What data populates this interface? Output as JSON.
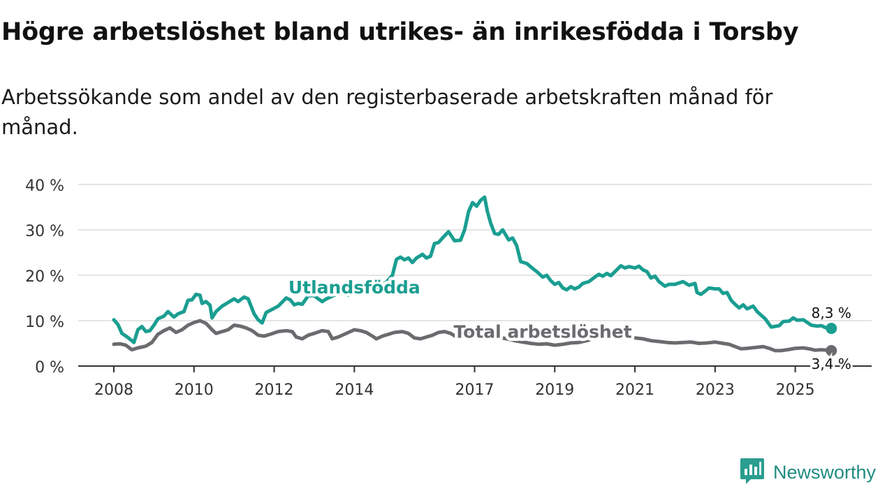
{
  "header": {
    "title": "Högre arbetslöshet bland utrikes- än inrikesfödda i Torsby",
    "subtitle": "Arbetssökande som andel av den registerbaserade arbetskraften månad för månad."
  },
  "brand": {
    "name": "Newsworthy",
    "icon": "bar-chart-logo-icon",
    "color": "#2a9d8f"
  },
  "chart_data": {
    "type": "line",
    "title": "Högre arbetslöshet bland utrikes- än inrikesfödda i Torsby",
    "xlabel": "",
    "ylabel": "",
    "ylim": [
      0,
      40
    ],
    "xlim": [
      2008,
      2026
    ],
    "grid": true,
    "yticks": [
      0,
      10,
      20,
      30,
      40
    ],
    "ytick_labels": [
      "0 %",
      "10 %",
      "20 %",
      "30 %",
      "40 %"
    ],
    "xticks": [
      2008,
      2010,
      2012,
      2014,
      2017,
      2019,
      2021,
      2023,
      2025
    ],
    "xtick_labels": [
      "2008",
      "2010",
      "2012",
      "2014",
      "2017",
      "2019",
      "2021",
      "2023",
      "2025"
    ],
    "series": [
      {
        "name": "Utlandsfödda",
        "color": "#1a9e91",
        "end_label": "8,3 %",
        "points": [
          [
            2008.0,
            10.2
          ],
          [
            2008.1,
            9.2
          ],
          [
            2008.2,
            7.2
          ],
          [
            2008.35,
            6.3
          ],
          [
            2008.5,
            5.2
          ],
          [
            2008.6,
            8.0
          ],
          [
            2008.7,
            8.7
          ],
          [
            2008.8,
            7.6
          ],
          [
            2008.9,
            7.8
          ],
          [
            2009.0,
            9.0
          ],
          [
            2009.1,
            10.4
          ],
          [
            2009.25,
            11.0
          ],
          [
            2009.35,
            12.0
          ],
          [
            2009.5,
            10.8
          ],
          [
            2009.6,
            11.5
          ],
          [
            2009.75,
            12.0
          ],
          [
            2009.85,
            14.5
          ],
          [
            2009.95,
            14.6
          ],
          [
            2010.05,
            15.8
          ],
          [
            2010.15,
            15.6
          ],
          [
            2010.2,
            13.8
          ],
          [
            2010.3,
            14.2
          ],
          [
            2010.4,
            13.4
          ],
          [
            2010.45,
            10.6
          ],
          [
            2010.55,
            12.0
          ],
          [
            2010.7,
            13.2
          ],
          [
            2010.85,
            14.0
          ],
          [
            2011.0,
            14.8
          ],
          [
            2011.1,
            14.2
          ],
          [
            2011.25,
            15.2
          ],
          [
            2011.35,
            14.8
          ],
          [
            2011.5,
            11.5
          ],
          [
            2011.6,
            10.2
          ],
          [
            2011.7,
            9.5
          ],
          [
            2011.8,
            11.8
          ],
          [
            2011.95,
            12.5
          ],
          [
            2012.1,
            13.2
          ],
          [
            2012.3,
            15.0
          ],
          [
            2012.4,
            14.6
          ],
          [
            2012.5,
            13.5
          ],
          [
            2012.6,
            13.8
          ],
          [
            2012.7,
            13.6
          ],
          [
            2012.85,
            15.5
          ],
          [
            2013.0,
            15.5
          ],
          [
            2013.1,
            14.8
          ],
          [
            2013.2,
            14.2
          ],
          [
            2013.3,
            14.8
          ],
          [
            2013.5,
            15.6
          ],
          [
            2013.7,
            16.0
          ],
          [
            2013.85,
            15.6
          ],
          [
            2014.0,
            16.0
          ],
          [
            2014.2,
            16.3
          ],
          [
            2014.4,
            16.8
          ],
          [
            2014.6,
            17.5
          ],
          [
            2014.8,
            18.5
          ],
          [
            2014.95,
            20.0
          ],
          [
            2015.05,
            23.5
          ],
          [
            2015.15,
            24.0
          ],
          [
            2015.25,
            23.4
          ],
          [
            2015.35,
            23.8
          ],
          [
            2015.45,
            22.8
          ],
          [
            2015.55,
            23.8
          ],
          [
            2015.7,
            24.6
          ],
          [
            2015.8,
            23.8
          ],
          [
            2015.9,
            24.2
          ],
          [
            2016.0,
            27.0
          ],
          [
            2016.1,
            27.2
          ],
          [
            2016.2,
            28.2
          ],
          [
            2016.35,
            29.6
          ],
          [
            2016.5,
            27.6
          ],
          [
            2016.65,
            27.7
          ],
          [
            2016.75,
            30.0
          ],
          [
            2016.85,
            34.0
          ],
          [
            2016.95,
            36.0
          ],
          [
            2017.05,
            35.2
          ],
          [
            2017.15,
            36.5
          ],
          [
            2017.25,
            37.2
          ],
          [
            2017.32,
            34.0
          ],
          [
            2017.4,
            31.5
          ],
          [
            2017.5,
            29.2
          ],
          [
            2017.6,
            29.0
          ],
          [
            2017.7,
            30.0
          ],
          [
            2017.85,
            27.8
          ],
          [
            2017.95,
            28.2
          ],
          [
            2018.05,
            26.5
          ],
          [
            2018.15,
            23.0
          ],
          [
            2018.3,
            22.6
          ],
          [
            2018.45,
            21.5
          ],
          [
            2018.55,
            20.8
          ],
          [
            2018.7,
            19.6
          ],
          [
            2018.8,
            20.0
          ],
          [
            2018.9,
            18.8
          ],
          [
            2019.0,
            18.0
          ],
          [
            2019.1,
            18.4
          ],
          [
            2019.2,
            17.2
          ],
          [
            2019.3,
            16.8
          ],
          [
            2019.4,
            17.5
          ],
          [
            2019.5,
            17.0
          ],
          [
            2019.6,
            17.4
          ],
          [
            2019.7,
            18.2
          ],
          [
            2019.85,
            18.6
          ],
          [
            2020.0,
            19.6
          ],
          [
            2020.1,
            20.2
          ],
          [
            2020.2,
            19.8
          ],
          [
            2020.3,
            20.4
          ],
          [
            2020.4,
            19.9
          ],
          [
            2020.55,
            21.2
          ],
          [
            2020.65,
            22.1
          ],
          [
            2020.75,
            21.6
          ],
          [
            2020.85,
            21.9
          ],
          [
            2021.0,
            21.6
          ],
          [
            2021.1,
            22.0
          ],
          [
            2021.2,
            21.2
          ],
          [
            2021.3,
            20.8
          ],
          [
            2021.4,
            19.4
          ],
          [
            2021.5,
            19.8
          ],
          [
            2021.6,
            18.6
          ],
          [
            2021.75,
            17.6
          ],
          [
            2021.85,
            18.0
          ],
          [
            2022.0,
            18.0
          ],
          [
            2022.2,
            18.6
          ],
          [
            2022.35,
            17.8
          ],
          [
            2022.5,
            18.2
          ],
          [
            2022.55,
            16.2
          ],
          [
            2022.65,
            15.8
          ],
          [
            2022.75,
            16.5
          ],
          [
            2022.85,
            17.2
          ],
          [
            2023.0,
            17.0
          ],
          [
            2023.1,
            17.0
          ],
          [
            2023.2,
            16.0
          ],
          [
            2023.3,
            16.2
          ],
          [
            2023.4,
            14.5
          ],
          [
            2023.5,
            13.6
          ],
          [
            2023.6,
            12.8
          ],
          [
            2023.7,
            13.5
          ],
          [
            2023.8,
            12.6
          ],
          [
            2023.95,
            13.2
          ],
          [
            2024.05,
            12.0
          ],
          [
            2024.15,
            11.2
          ],
          [
            2024.25,
            10.4
          ],
          [
            2024.4,
            8.6
          ],
          [
            2024.6,
            8.9
          ],
          [
            2024.7,
            9.8
          ],
          [
            2024.85,
            9.9
          ],
          [
            2024.95,
            10.6
          ],
          [
            2025.05,
            10.1
          ],
          [
            2025.2,
            10.2
          ],
          [
            2025.3,
            9.6
          ],
          [
            2025.4,
            9.0
          ],
          [
            2025.55,
            8.8
          ],
          [
            2025.65,
            8.9
          ],
          [
            2025.75,
            8.5
          ],
          [
            2025.9,
            8.3
          ]
        ]
      },
      {
        "name": "Total arbetslöshet",
        "color": "#6b6b6f",
        "end_label": "3,4 %",
        "points": [
          [
            2008.0,
            4.8
          ],
          [
            2008.15,
            4.9
          ],
          [
            2008.3,
            4.6
          ],
          [
            2008.45,
            3.6
          ],
          [
            2008.6,
            4.0
          ],
          [
            2008.8,
            4.4
          ],
          [
            2008.95,
            5.2
          ],
          [
            2009.1,
            7.0
          ],
          [
            2009.25,
            7.8
          ],
          [
            2009.4,
            8.4
          ],
          [
            2009.55,
            7.4
          ],
          [
            2009.7,
            8.0
          ],
          [
            2009.85,
            9.0
          ],
          [
            2010.0,
            9.6
          ],
          [
            2010.15,
            10.0
          ],
          [
            2010.3,
            9.4
          ],
          [
            2010.45,
            8.0
          ],
          [
            2010.55,
            7.2
          ],
          [
            2010.7,
            7.6
          ],
          [
            2010.85,
            8.0
          ],
          [
            2011.0,
            9.0
          ],
          [
            2011.15,
            8.8
          ],
          [
            2011.3,
            8.4
          ],
          [
            2011.45,
            7.8
          ],
          [
            2011.6,
            6.8
          ],
          [
            2011.75,
            6.6
          ],
          [
            2011.9,
            7.0
          ],
          [
            2012.1,
            7.6
          ],
          [
            2012.3,
            7.8
          ],
          [
            2012.45,
            7.6
          ],
          [
            2012.55,
            6.4
          ],
          [
            2012.7,
            6.0
          ],
          [
            2012.85,
            6.8
          ],
          [
            2013.0,
            7.2
          ],
          [
            2013.2,
            7.8
          ],
          [
            2013.35,
            7.6
          ],
          [
            2013.45,
            6.0
          ],
          [
            2013.6,
            6.4
          ],
          [
            2013.75,
            7.0
          ],
          [
            2013.9,
            7.6
          ],
          [
            2014.0,
            8.0
          ],
          [
            2014.15,
            7.8
          ],
          [
            2014.3,
            7.4
          ],
          [
            2014.45,
            6.6
          ],
          [
            2014.55,
            6.0
          ],
          [
            2014.7,
            6.6
          ],
          [
            2014.85,
            7.0
          ],
          [
            2015.0,
            7.4
          ],
          [
            2015.2,
            7.6
          ],
          [
            2015.35,
            7.2
          ],
          [
            2015.5,
            6.2
          ],
          [
            2015.65,
            6.0
          ],
          [
            2015.8,
            6.4
          ],
          [
            2015.95,
            6.8
          ],
          [
            2016.1,
            7.4
          ],
          [
            2016.25,
            7.6
          ],
          [
            2016.4,
            7.2
          ],
          [
            2016.55,
            6.4
          ],
          [
            2016.7,
            6.8
          ],
          [
            2016.85,
            7.6
          ],
          [
            2017.0,
            7.8
          ],
          [
            2017.15,
            8.2
          ],
          [
            2017.3,
            7.6
          ],
          [
            2017.45,
            6.8
          ],
          [
            2017.6,
            6.4
          ],
          [
            2017.8,
            6.0
          ],
          [
            2018.0,
            5.6
          ],
          [
            2018.2,
            5.3
          ],
          [
            2018.4,
            5.0
          ],
          [
            2018.6,
            4.8
          ],
          [
            2018.8,
            4.9
          ],
          [
            2019.0,
            4.6
          ],
          [
            2019.2,
            4.8
          ],
          [
            2019.4,
            5.1
          ],
          [
            2019.6,
            5.2
          ],
          [
            2019.8,
            5.6
          ],
          [
            2020.0,
            6.2
          ],
          [
            2020.2,
            6.3
          ],
          [
            2020.4,
            6.5
          ],
          [
            2020.6,
            6.6
          ],
          [
            2020.8,
            6.4
          ],
          [
            2021.0,
            6.2
          ],
          [
            2021.2,
            6.0
          ],
          [
            2021.4,
            5.6
          ],
          [
            2021.6,
            5.4
          ],
          [
            2021.8,
            5.2
          ],
          [
            2022.0,
            5.1
          ],
          [
            2022.2,
            5.2
          ],
          [
            2022.4,
            5.3
          ],
          [
            2022.6,
            5.0
          ],
          [
            2022.8,
            5.1
          ],
          [
            2023.0,
            5.3
          ],
          [
            2023.2,
            5.0
          ],
          [
            2023.35,
            4.8
          ],
          [
            2023.5,
            4.3
          ],
          [
            2023.65,
            3.8
          ],
          [
            2023.8,
            3.9
          ],
          [
            2024.0,
            4.1
          ],
          [
            2024.2,
            4.3
          ],
          [
            2024.35,
            3.9
          ],
          [
            2024.5,
            3.4
          ],
          [
            2024.65,
            3.4
          ],
          [
            2024.8,
            3.6
          ],
          [
            2025.0,
            3.9
          ],
          [
            2025.2,
            4.0
          ],
          [
            2025.35,
            3.8
          ],
          [
            2025.5,
            3.5
          ],
          [
            2025.65,
            3.6
          ],
          [
            2025.8,
            3.5
          ],
          [
            2025.9,
            3.4
          ]
        ]
      }
    ],
    "annotations": [
      {
        "text": "Utlandsfödda",
        "series": 0,
        "x": 2014.0,
        "y": 16.0
      },
      {
        "text": "Total arbetslöshet",
        "series": 1,
        "x": 2018.7,
        "y": 6.2
      }
    ]
  }
}
